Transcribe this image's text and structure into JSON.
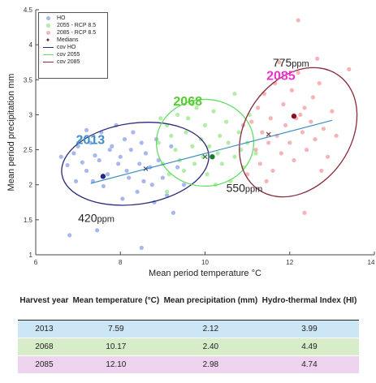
{
  "chart_data": {
    "type": "scatter",
    "xlabel": "Mean period temperature °C",
    "ylabel": "Mean period precipitation mm",
    "xlim": [
      6,
      14
    ],
    "ylim": [
      1,
      4.5
    ],
    "xticks": [
      "6",
      "8",
      "10",
      "12",
      "14"
    ],
    "yticks": [
      "1",
      "1.5",
      "2",
      "2.5",
      "3",
      "3.5",
      "4",
      "4.5"
    ],
    "grid": false,
    "legend_position": "top-left",
    "legend": [
      "HO",
      "2055 - RCP 8.5",
      "2085 - RCP 8.5",
      "Medians",
      "cov HO",
      "cov 2055",
      "cov 2085"
    ],
    "series": [
      {
        "name": "HO",
        "color": "#a8b8ee",
        "points": [
          [
            6.6,
            2.4
          ],
          [
            6.75,
            2.28
          ],
          [
            6.9,
            2.45
          ],
          [
            7.0,
            2.55
          ],
          [
            7.1,
            2.32
          ],
          [
            7.2,
            2.2
          ],
          [
            7.3,
            2.6
          ],
          [
            7.35,
            2.05
          ],
          [
            7.4,
            2.42
          ],
          [
            7.5,
            2.35
          ],
          [
            7.55,
            2.75
          ],
          [
            7.6,
            1.98
          ],
          [
            7.7,
            2.15
          ],
          [
            7.75,
            2.5
          ],
          [
            7.8,
            2.55
          ],
          [
            7.9,
            2.85
          ],
          [
            7.95,
            2.3
          ],
          [
            8.0,
            2.4
          ],
          [
            8.1,
            2.65
          ],
          [
            8.15,
            2.2
          ],
          [
            8.2,
            2.1
          ],
          [
            8.25,
            2.5
          ],
          [
            8.3,
            2.75
          ],
          [
            8.4,
            1.9
          ],
          [
            8.45,
            2.3
          ],
          [
            8.5,
            2.6
          ],
          [
            8.55,
            2.05
          ],
          [
            8.6,
            2.45
          ],
          [
            8.7,
            2.25
          ],
          [
            8.75,
            2.0
          ],
          [
            8.8,
            1.75
          ],
          [
            8.85,
            2.65
          ],
          [
            8.9,
            2.35
          ],
          [
            9.0,
            2.1
          ],
          [
            9.1,
            1.85
          ],
          [
            9.2,
            2.55
          ],
          [
            9.35,
            2.25
          ],
          [
            9.5,
            2.0
          ],
          [
            6.8,
            1.28
          ],
          [
            7.45,
            1.35
          ],
          [
            8.5,
            1.1
          ],
          [
            7.2,
            2.78
          ],
          [
            9.25,
            1.6
          ],
          [
            6.95,
            2.05
          ],
          [
            8.05,
            1.8
          ]
        ]
      },
      {
        "name": "2055 - RCP 8.5",
        "color": "#b2eca5",
        "points": [
          [
            8.9,
            2.6
          ],
          [
            9.0,
            2.3
          ],
          [
            9.1,
            2.85
          ],
          [
            9.15,
            2.15
          ],
          [
            9.2,
            2.7
          ],
          [
            9.3,
            2.5
          ],
          [
            9.35,
            3.0
          ],
          [
            9.4,
            2.35
          ],
          [
            9.5,
            2.2
          ],
          [
            9.55,
            2.75
          ],
          [
            9.6,
            2.95
          ],
          [
            9.7,
            2.55
          ],
          [
            9.75,
            2.3
          ],
          [
            9.8,
            3.1
          ],
          [
            9.9,
            2.65
          ],
          [
            9.95,
            2.4
          ],
          [
            10.0,
            2.85
          ],
          [
            10.05,
            2.15
          ],
          [
            10.1,
            2.55
          ],
          [
            10.2,
            3.05
          ],
          [
            10.3,
            2.45
          ],
          [
            10.35,
            2.7
          ],
          [
            10.4,
            2.3
          ],
          [
            10.5,
            2.9
          ],
          [
            10.55,
            2.6
          ],
          [
            10.6,
            2.05
          ],
          [
            10.7,
            2.4
          ],
          [
            10.8,
            2.75
          ],
          [
            10.85,
            2.5
          ],
          [
            10.9,
            2.25
          ],
          [
            11.0,
            2.6
          ],
          [
            11.05,
            3.0
          ],
          [
            9.1,
            1.9
          ],
          [
            10.7,
            3.3
          ],
          [
            11.2,
            2.45
          ],
          [
            9.7,
            3.15
          ],
          [
            10.25,
            2.0
          ],
          [
            8.95,
            2.95
          ]
        ]
      },
      {
        "name": "2085 - RCP 8.5",
        "color": "#f5b4b8",
        "points": [
          [
            11.1,
            2.9
          ],
          [
            11.2,
            2.5
          ],
          [
            11.25,
            3.1
          ],
          [
            11.3,
            2.3
          ],
          [
            11.35,
            2.75
          ],
          [
            11.4,
            3.3
          ],
          [
            11.5,
            2.6
          ],
          [
            11.55,
            2.95
          ],
          [
            11.6,
            2.2
          ],
          [
            11.65,
            3.45
          ],
          [
            11.7,
            2.7
          ],
          [
            11.8,
            2.45
          ],
          [
            11.85,
            3.15
          ],
          [
            11.9,
            2.85
          ],
          [
            12.0,
            2.6
          ],
          [
            12.05,
            3.35
          ],
          [
            12.1,
            2.35
          ],
          [
            12.15,
            2.95
          ],
          [
            12.2,
            3.6
          ],
          [
            12.3,
            2.75
          ],
          [
            12.35,
            3.1
          ],
          [
            12.4,
            2.5
          ],
          [
            12.5,
            2.9
          ],
          [
            12.55,
            3.25
          ],
          [
            12.6,
            2.65
          ],
          [
            12.7,
            3.45
          ],
          [
            12.8,
            2.8
          ],
          [
            12.9,
            2.4
          ],
          [
            13.0,
            3.05
          ],
          [
            13.1,
            2.7
          ],
          [
            13.4,
            3.65
          ],
          [
            12.2,
            4.35
          ],
          [
            12.35,
            1.6
          ],
          [
            11.0,
            2.15
          ],
          [
            10.9,
            2.85
          ],
          [
            11.45,
            2.05
          ],
          [
            12.75,
            2.2
          ],
          [
            12.25,
            3.0
          ],
          [
            11.75,
            3.75
          ],
          [
            12.65,
            3.8
          ]
        ]
      }
    ],
    "medians": [
      {
        "label": "HO",
        "x": 7.59,
        "y": 2.12,
        "color": "#23288c"
      },
      {
        "label": "2055",
        "x": 10.17,
        "y": 2.4,
        "color": "#1f7a2a"
      },
      {
        "label": "2085",
        "x": 12.1,
        "y": 2.98,
        "color": "#8a1020"
      }
    ],
    "extra_marks": [
      {
        "label": "HO cross",
        "x": 8.6,
        "y": 2.23,
        "color": "#3a4a8a"
      },
      {
        "label": "2055 cross",
        "x": 10.0,
        "y": 2.4,
        "color": "#3a6a3a"
      },
      {
        "label": "2085 cross",
        "x": 11.5,
        "y": 2.72,
        "color": "#7a3a3a"
      }
    ],
    "trend_line": {
      "color": "#3b8fc4",
      "from": [
        7.3,
        2.02
      ],
      "to": [
        13.0,
        2.92
      ]
    },
    "ellipses": [
      {
        "name": "cov HO",
        "color": "#2a2a7a",
        "cx": 8.35,
        "cy": 2.3,
        "rx": 1.75,
        "ry": 0.58,
        "angle": 8
      },
      {
        "name": "cov 2055",
        "color": "#66dd66",
        "cx": 10.0,
        "cy": 2.6,
        "rx": 1.15,
        "ry": 0.62,
        "angle": 0
      },
      {
        "name": "cov 2085",
        "color": "#8a2a3a",
        "cx": 12.2,
        "cy": 2.75,
        "rx": 1.65,
        "ry": 0.75,
        "angle": 55
      }
    ],
    "annotations": [
      {
        "text": "2013",
        "x": 6.95,
        "y": 2.58,
        "color": "#3b8fc4",
        "size": 16
      },
      {
        "text": "2068",
        "x": 9.25,
        "y": 3.13,
        "color": "#55cc33",
        "size": 16
      },
      {
        "text": "2085",
        "x": 11.45,
        "y": 3.5,
        "color": "#ee33cc",
        "size": 16
      },
      {
        "text": "420",
        "unit": "ppm",
        "x": 7.0,
        "y": 1.47,
        "color": "#222222",
        "size": 14
      },
      {
        "text": "550",
        "unit": "ppm",
        "x": 10.5,
        "y": 1.9,
        "color": "#222222",
        "size": 14
      },
      {
        "text": "775",
        "unit": "ppm",
        "x": 11.6,
        "y": 3.69,
        "color": "#222222",
        "size": 14
      }
    ]
  },
  "table": {
    "headers": [
      "Harvest year",
      "Mean temperature (°C)",
      "Mean precipitation (mm)",
      "Hydro-thermal Index (HI)"
    ],
    "rows": [
      [
        "2013",
        "7.59",
        "2.12",
        "3.99"
      ],
      [
        "2068",
        "10.17",
        "2.40",
        "4.49"
      ],
      [
        "2085",
        "12.10",
        "2.98",
        "4.74"
      ]
    ]
  }
}
